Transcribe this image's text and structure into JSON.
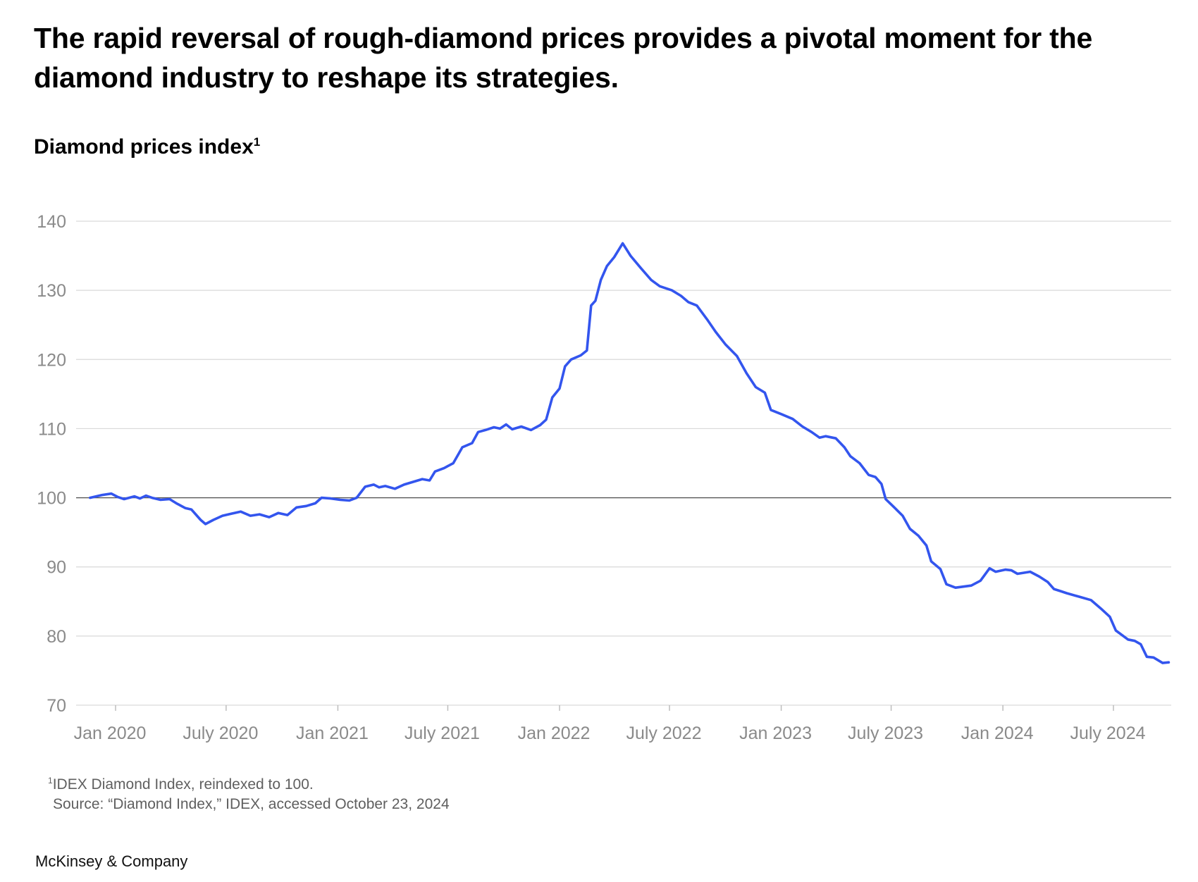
{
  "title": "The rapid reversal of rough-diamond prices provides a pivotal moment for the diamond industry to reshape its strategies.",
  "subtitle": "Diamond prices index",
  "subtitle_footnote_mark": "1",
  "footnote": {
    "mark": "1",
    "text": "IDEX Diamond Index, reindexed to 100.",
    "source": "Source: “Diamond Index,” IDEX, accessed October 23, 2024"
  },
  "brand": "McKinsey & Company",
  "colors": {
    "line": "#3355ee",
    "grid": "#d9d9d9",
    "baseline": "#555555",
    "axis_text": "#8a8a8a"
  },
  "chart_data": {
    "type": "line",
    "title": "Diamond prices index",
    "xlabel": "",
    "ylabel": "",
    "ylim": [
      70,
      140
    ],
    "yticks": [
      70,
      80,
      90,
      100,
      110,
      120,
      130,
      140
    ],
    "reference_line": 100,
    "grid": true,
    "x_ticks": [
      {
        "date": "2020-01-01",
        "label": "Jan 2020"
      },
      {
        "date": "2020-07-01",
        "label": "July 2020"
      },
      {
        "date": "2021-01-01",
        "label": "Jan 2021"
      },
      {
        "date": "2021-07-01",
        "label": "July 2021"
      },
      {
        "date": "2022-01-01",
        "label": "Jan 2022"
      },
      {
        "date": "2022-07-01",
        "label": "July 2022"
      },
      {
        "date": "2023-01-01",
        "label": "Jan 2023"
      },
      {
        "date": "2023-07-01",
        "label": "July 2023"
      },
      {
        "date": "2024-01-01",
        "label": "Jan 2024"
      },
      {
        "date": "2024-07-01",
        "label": "July 2024"
      }
    ],
    "series": [
      {
        "color": "#3355ee",
        "points": [
          [
            "2019-11-20",
            100.0
          ],
          [
            "2019-12-10",
            100.4
          ],
          [
            "2019-12-25",
            100.6
          ],
          [
            "2020-01-05",
            100.1
          ],
          [
            "2020-01-15",
            99.8
          ],
          [
            "2020-02-01",
            100.2
          ],
          [
            "2020-02-10",
            99.9
          ],
          [
            "2020-02-20",
            100.3
          ],
          [
            "2020-03-01",
            100.0
          ],
          [
            "2020-03-15",
            99.7
          ],
          [
            "2020-03-30",
            99.8
          ],
          [
            "2020-04-10",
            99.2
          ],
          [
            "2020-04-25",
            98.5
          ],
          [
            "2020-05-05",
            98.3
          ],
          [
            "2020-05-20",
            96.8
          ],
          [
            "2020-05-28",
            96.2
          ],
          [
            "2020-06-10",
            96.8
          ],
          [
            "2020-06-25",
            97.4
          ],
          [
            "2020-07-10",
            97.7
          ],
          [
            "2020-07-25",
            98.0
          ],
          [
            "2020-08-10",
            97.4
          ],
          [
            "2020-08-25",
            97.6
          ],
          [
            "2020-09-10",
            97.2
          ],
          [
            "2020-09-25",
            97.8
          ],
          [
            "2020-10-10",
            97.5
          ],
          [
            "2020-10-25",
            98.6
          ],
          [
            "2020-11-10",
            98.8
          ],
          [
            "2020-11-25",
            99.2
          ],
          [
            "2020-12-05",
            100.0
          ],
          [
            "2020-12-20",
            99.9
          ],
          [
            "2021-01-05",
            99.7
          ],
          [
            "2021-01-20",
            99.6
          ],
          [
            "2021-02-01",
            100.0
          ],
          [
            "2021-02-15",
            101.6
          ],
          [
            "2021-03-01",
            101.9
          ],
          [
            "2021-03-10",
            101.5
          ],
          [
            "2021-03-20",
            101.7
          ],
          [
            "2021-04-05",
            101.3
          ],
          [
            "2021-04-20",
            101.9
          ],
          [
            "2021-05-05",
            102.3
          ],
          [
            "2021-05-20",
            102.7
          ],
          [
            "2021-06-01",
            102.5
          ],
          [
            "2021-06-10",
            103.8
          ],
          [
            "2021-06-25",
            104.3
          ],
          [
            "2021-07-10",
            105.0
          ],
          [
            "2021-07-25",
            107.3
          ],
          [
            "2021-08-10",
            107.9
          ],
          [
            "2021-08-20",
            109.5
          ],
          [
            "2021-09-01",
            109.8
          ],
          [
            "2021-09-15",
            110.2
          ],
          [
            "2021-09-25",
            110.0
          ],
          [
            "2021-10-05",
            110.6
          ],
          [
            "2021-10-15",
            109.9
          ],
          [
            "2021-10-30",
            110.3
          ],
          [
            "2021-11-15",
            109.8
          ],
          [
            "2021-11-30",
            110.5
          ],
          [
            "2021-12-10",
            111.3
          ],
          [
            "2021-12-20",
            114.5
          ],
          [
            "2022-01-01",
            115.8
          ],
          [
            "2022-01-10",
            119.0
          ],
          [
            "2022-01-20",
            120.0
          ],
          [
            "2022-02-05",
            120.6
          ],
          [
            "2022-02-15",
            121.3
          ],
          [
            "2022-02-22",
            127.8
          ],
          [
            "2022-03-01",
            128.5
          ],
          [
            "2022-03-10",
            131.5
          ],
          [
            "2022-03-20",
            133.5
          ],
          [
            "2022-04-01",
            134.8
          ],
          [
            "2022-04-15",
            136.8
          ],
          [
            "2022-04-28",
            135.0
          ],
          [
            "2022-05-15",
            133.2
          ],
          [
            "2022-06-01",
            131.5
          ],
          [
            "2022-06-15",
            130.6
          ],
          [
            "2022-07-05",
            130.0
          ],
          [
            "2022-07-20",
            129.2
          ],
          [
            "2022-08-01",
            128.3
          ],
          [
            "2022-08-15",
            127.8
          ],
          [
            "2022-09-01",
            125.8
          ],
          [
            "2022-09-15",
            124.0
          ],
          [
            "2022-10-01",
            122.2
          ],
          [
            "2022-10-20",
            120.5
          ],
          [
            "2022-11-05",
            118.0
          ],
          [
            "2022-11-20",
            116.0
          ],
          [
            "2022-12-05",
            115.2
          ],
          [
            "2022-12-15",
            112.7
          ],
          [
            "2023-01-01",
            112.1
          ],
          [
            "2023-01-20",
            111.4
          ],
          [
            "2023-02-05",
            110.3
          ],
          [
            "2023-02-20",
            109.5
          ],
          [
            "2023-03-05",
            108.7
          ],
          [
            "2023-03-15",
            108.9
          ],
          [
            "2023-04-01",
            108.6
          ],
          [
            "2023-04-15",
            107.3
          ],
          [
            "2023-04-25",
            106.0
          ],
          [
            "2023-05-10",
            105.0
          ],
          [
            "2023-05-25",
            103.3
          ],
          [
            "2023-06-05",
            103.0
          ],
          [
            "2023-06-15",
            102.0
          ],
          [
            "2023-06-22",
            99.8
          ],
          [
            "2023-07-05",
            98.7
          ],
          [
            "2023-07-20",
            97.4
          ],
          [
            "2023-08-01",
            95.5
          ],
          [
            "2023-08-15",
            94.5
          ],
          [
            "2023-08-28",
            93.1
          ],
          [
            "2023-09-05",
            90.8
          ],
          [
            "2023-09-20",
            89.7
          ],
          [
            "2023-09-30",
            87.5
          ],
          [
            "2023-10-15",
            87.0
          ],
          [
            "2023-11-10",
            87.3
          ],
          [
            "2023-11-25",
            88.0
          ],
          [
            "2023-12-10",
            89.8
          ],
          [
            "2023-12-20",
            89.3
          ],
          [
            "2024-01-05",
            89.6
          ],
          [
            "2024-01-15",
            89.5
          ],
          [
            "2024-01-25",
            89.0
          ],
          [
            "2024-02-15",
            89.3
          ],
          [
            "2024-03-01",
            88.6
          ],
          [
            "2024-03-15",
            87.8
          ],
          [
            "2024-03-25",
            86.8
          ],
          [
            "2024-04-05",
            86.5
          ],
          [
            "2024-04-15",
            86.2
          ],
          [
            "2024-05-05",
            85.7
          ],
          [
            "2024-05-25",
            85.2
          ],
          [
            "2024-06-10",
            84.0
          ],
          [
            "2024-06-25",
            82.8
          ],
          [
            "2024-07-05",
            80.8
          ],
          [
            "2024-07-25",
            79.5
          ],
          [
            "2024-08-05",
            79.3
          ],
          [
            "2024-08-15",
            78.8
          ],
          [
            "2024-08-25",
            77.0
          ],
          [
            "2024-09-05",
            76.9
          ],
          [
            "2024-09-20",
            76.1
          ],
          [
            "2024-09-30",
            76.2
          ]
        ]
      }
    ]
  }
}
